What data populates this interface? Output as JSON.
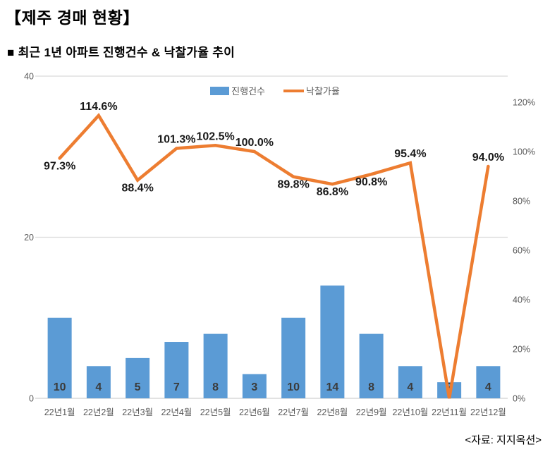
{
  "page": {
    "title": "【제주 경매 현황】",
    "subtitle": "■  최근 1년 아파트 진행건수 & 낙찰가율 추이",
    "source": "<자료: 지지옥션>"
  },
  "colors": {
    "bar": "#5B9BD5",
    "line": "#ED7D31",
    "grid": "#D9D9D9",
    "axis_text": "#595959",
    "bar_label": "#3b3b3b",
    "point_label": "#1a1a1a"
  },
  "chart_data": {
    "type": "bar+line combo",
    "title": "최근 1년 아파트 진행건수 & 낙찰가율 추이",
    "categories": [
      "22년1월",
      "22년2월",
      "22년3월",
      "22년4월",
      "22년5월",
      "22년6월",
      "22년7월",
      "22년8월",
      "22년9월",
      "22년10월",
      "22년11월",
      "22년12월"
    ],
    "series": [
      {
        "name": "진행건수",
        "type": "bar",
        "axis": "left",
        "values": [
          10,
          4,
          5,
          7,
          8,
          3,
          10,
          14,
          8,
          4,
          2,
          4
        ]
      },
      {
        "name": "낙찰가율",
        "type": "line",
        "axis": "right",
        "values": [
          97.3,
          114.6,
          88.4,
          101.3,
          102.5,
          100.0,
          89.8,
          86.8,
          90.8,
          95.4,
          0,
          94.0
        ],
        "point_labels": [
          "97.3%",
          "114.6%",
          "88.4%",
          "101.3%",
          "102.5%",
          "100.0%",
          "89.8%",
          "86.8%",
          "90.8%",
          "95.4%",
          "",
          "94.0%"
        ],
        "label_positions": [
          "below",
          "above",
          "below",
          "above",
          "above",
          "above",
          "below",
          "below",
          "below",
          "above",
          "none",
          "above"
        ]
      }
    ],
    "left_axis": {
      "ticks": [
        0,
        20,
        40
      ],
      "range": [
        0,
        40
      ]
    },
    "right_axis": {
      "ticks": [
        "0%",
        "20%",
        "40%",
        "60%",
        "80%",
        "100%",
        "120%"
      ],
      "tick_step_pct": 20,
      "range_visible": [
        0,
        120
      ]
    },
    "legend_position": "top",
    "grid": "horizontal lines at left-axis 20 and 40, light gray"
  }
}
